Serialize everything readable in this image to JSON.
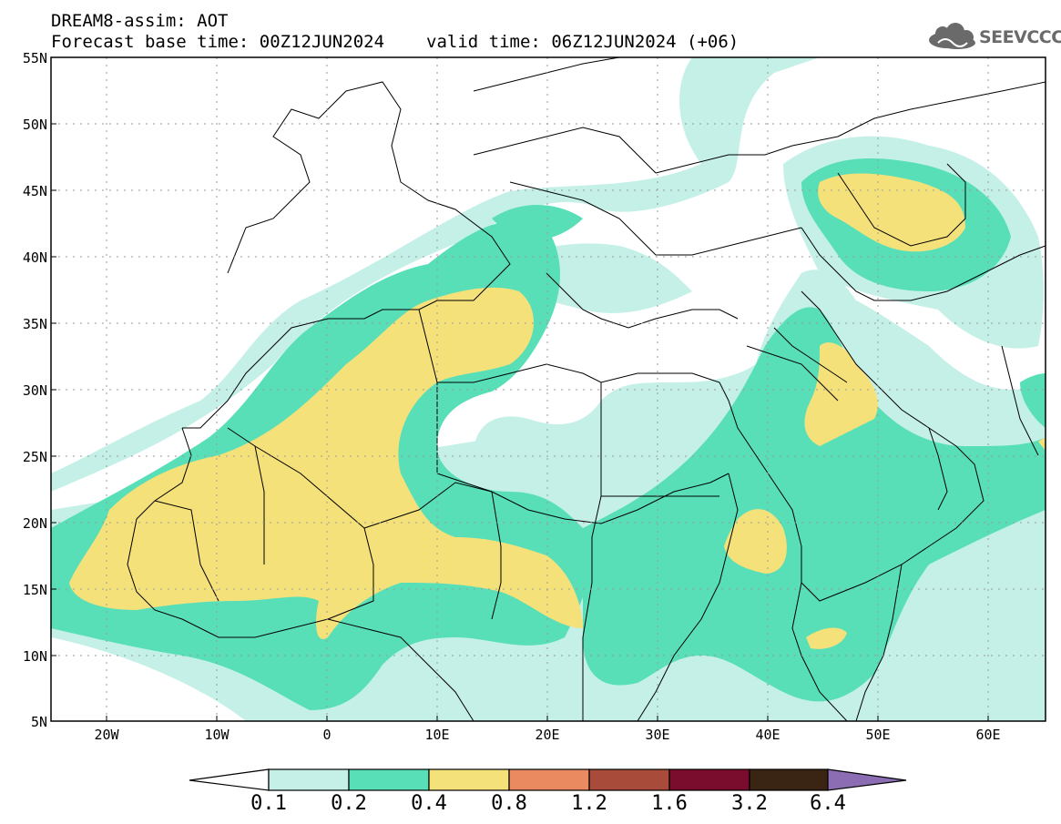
{
  "header": {
    "title_line1": "DREAM8-assim: AOT",
    "base_time": "Forecast base time: 00Z12JUN2024",
    "valid_time": "valid time: 06Z12JUN2024 (+06)"
  },
  "logo": {
    "text": "SEEVCCC",
    "icon": "cloud-icon",
    "color": "#6a6a6a"
  },
  "map": {
    "lat_labels": [
      "55N",
      "50N",
      "45N",
      "40N",
      "35N",
      "30N",
      "25N",
      "20N",
      "15N",
      "10N",
      "5N"
    ],
    "lon_labels": [
      "20W",
      "10W",
      "0",
      "10E",
      "20E",
      "30E",
      "40E",
      "50E",
      "60E"
    ]
  },
  "colorbar": {
    "labels": [
      "0.1",
      "0.2",
      "0.4",
      "0.8",
      "1.2",
      "1.6",
      "3.2",
      "6.4"
    ],
    "colors": [
      "#ffffff",
      "#c4f0e8",
      "#58dfb8",
      "#f5e17a",
      "#e98a61",
      "#a84b3a",
      "#7a0c2e",
      "#3a2414",
      "#8c6db4"
    ]
  }
}
